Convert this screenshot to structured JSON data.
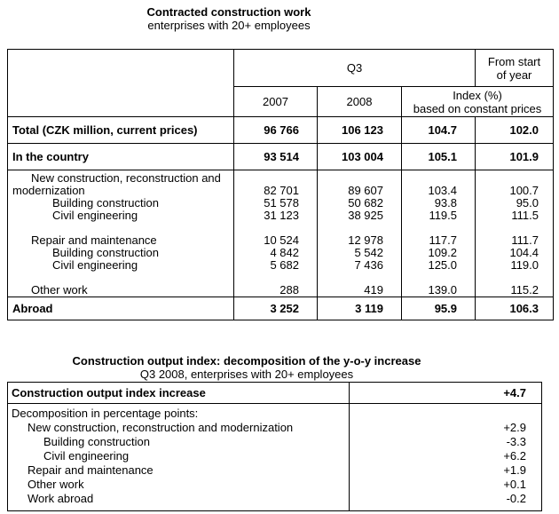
{
  "page": {
    "background": "#ffffff",
    "text_color": "#000000",
    "border_color": "#000000"
  },
  "table1": {
    "title": "Contracted construction work",
    "subtitle": "enterprises with 20+ employees",
    "header": {
      "q3": "Q3",
      "from_start_lines": [
        "From start",
        "of year"
      ],
      "col2007": "2007",
      "col2008": "2008",
      "index_lines": [
        "Index (%)",
        "based on constant prices"
      ]
    },
    "rows": [
      {
        "style": "bold",
        "label": "Total (CZK million, current prices)",
        "v2007": "96 766",
        "v2008": "106 123",
        "index": "104.7",
        "ytd": "102.0"
      },
      {
        "style": "bold",
        "label": "In the country",
        "v2007": "93 514",
        "v2008": "103 004",
        "index": "105.1",
        "ytd": "101.9"
      },
      {
        "style": "section",
        "lines": [
          {
            "label": "New construction, reconstruction and",
            "indent": 1,
            "v2007": "",
            "v2008": "",
            "index": "",
            "ytd": ""
          },
          {
            "label": "modernization",
            "indent": 0,
            "v2007": "82 701",
            "v2008": "89 607",
            "index": "103.4",
            "ytd": "100.7"
          },
          {
            "label": "Building construction",
            "indent": 2,
            "v2007": "51 578",
            "v2008": "50 682",
            "index": "93.8",
            "ytd": "95.0"
          },
          {
            "label": "Civil engineering",
            "indent": 2,
            "v2007": "31 123",
            "v2008": "38 925",
            "index": "119.5",
            "ytd": "111.5"
          },
          {
            "label": "",
            "indent": 0,
            "v2007": "",
            "v2008": "",
            "index": "",
            "ytd": ""
          },
          {
            "label": "Repair and maintenance",
            "indent": 1,
            "v2007": "10 524",
            "v2008": "12 978",
            "index": "117.7",
            "ytd": "111.7"
          },
          {
            "label": "Building construction",
            "indent": 2,
            "v2007": "4 842",
            "v2008": "5 542",
            "index": "109.2",
            "ytd": "104.4"
          },
          {
            "label": "Civil engineering",
            "indent": 2,
            "v2007": "5 682",
            "v2008": "7 436",
            "index": "125.0",
            "ytd": "119.0"
          },
          {
            "label": "",
            "indent": 0,
            "v2007": "",
            "v2008": "",
            "index": "",
            "ytd": ""
          },
          {
            "label": "Other work",
            "indent": 1,
            "v2007": "288",
            "v2008": "419",
            "index": "139.0",
            "ytd": "115.2"
          }
        ]
      },
      {
        "style": "bold-abroad",
        "label": "Abroad",
        "v2007": "3 252",
        "v2008": "3 119",
        "index": "95.9",
        "ytd": "106.3"
      }
    ]
  },
  "table2": {
    "title": "Construction output index: decomposition of the y-o-y increase",
    "subtitle": "Q3 2008, enterprises with 20+ employees",
    "rows": [
      {
        "style": "bold",
        "label": "Construction output index increase",
        "value": "+4.7"
      },
      {
        "style": "section",
        "lines": [
          {
            "label": "Decomposition in percentage points:",
            "indent": 0,
            "value": ""
          },
          {
            "label": "New construction, reconstruction and modernization",
            "indent": 1,
            "value": "+2.9"
          },
          {
            "label": "Building construction",
            "indent": 2,
            "value": "-3.3"
          },
          {
            "label": "Civil engineering",
            "indent": 2,
            "value": "+6.2"
          },
          {
            "label": "Repair and maintenance",
            "indent": 1,
            "value": "+1.9"
          },
          {
            "label": "Other work",
            "indent": 1,
            "value": "+0.1"
          },
          {
            "label": "Work abroad",
            "indent": 1,
            "value": "-0.2"
          }
        ]
      }
    ]
  }
}
